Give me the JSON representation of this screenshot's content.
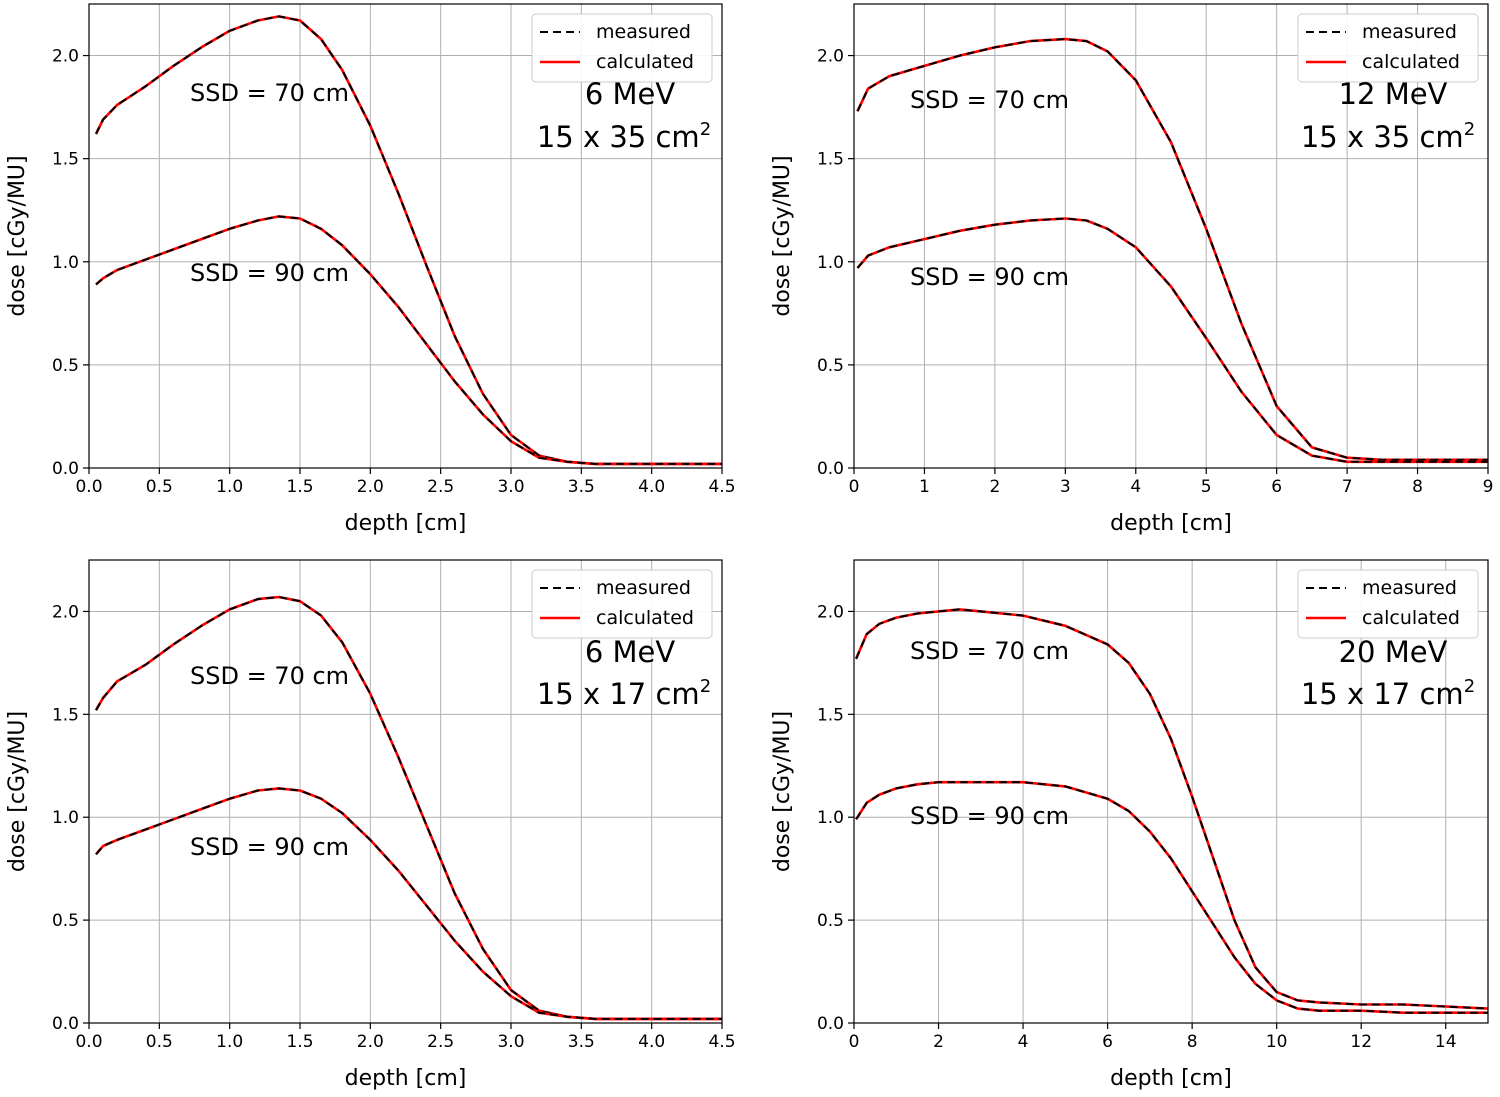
{
  "chart_data": [
    {
      "type": "line",
      "xlabel": "depth [cm]",
      "ylabel": "dose [cGy/MU]",
      "xlim": [
        0,
        4.5
      ],
      "ylim": [
        0,
        2.25
      ],
      "xticks": [
        "0.0",
        "0.5",
        "1.0",
        "1.5",
        "2.0",
        "2.5",
        "3.0",
        "3.5",
        "4.0",
        "4.5"
      ],
      "xtick_values": [
        0,
        0.5,
        1.0,
        1.5,
        2.0,
        2.5,
        3.0,
        3.5,
        4.0,
        4.5
      ],
      "yticks": [
        "0.0",
        "0.5",
        "1.0",
        "1.5",
        "2.0"
      ],
      "ytick_values": [
        0,
        0.5,
        1.0,
        1.5,
        2.0
      ],
      "grid": true,
      "legend_position": "top-right",
      "legend": [
        "measured",
        "calculated"
      ],
      "annotations": {
        "energy": "6 MeV",
        "field_prefix": "15 x 35 cm",
        "field_sup": "2",
        "ssd70": "SSD = 70 cm",
        "ssd90": "SSD = 90 cm"
      },
      "series": [
        {
          "group": "SSD = 70 cm",
          "x": [
            0.05,
            0.1,
            0.2,
            0.4,
            0.6,
            0.8,
            1.0,
            1.2,
            1.35,
            1.5,
            1.65,
            1.8,
            2.0,
            2.2,
            2.4,
            2.6,
            2.8,
            3.0,
            3.2,
            3.4,
            3.6,
            4.0,
            4.5
          ],
          "y": [
            1.62,
            1.69,
            1.76,
            1.85,
            1.95,
            2.04,
            2.12,
            2.17,
            2.19,
            2.17,
            2.08,
            1.93,
            1.66,
            1.33,
            0.98,
            0.64,
            0.36,
            0.16,
            0.06,
            0.03,
            0.02,
            0.02,
            0.02
          ]
        },
        {
          "group": "SSD = 90 cm",
          "x": [
            0.05,
            0.1,
            0.2,
            0.4,
            0.6,
            0.8,
            1.0,
            1.2,
            1.35,
            1.5,
            1.65,
            1.8,
            2.0,
            2.2,
            2.4,
            2.6,
            2.8,
            3.0,
            3.2,
            3.4,
            3.6,
            4.0,
            4.5
          ],
          "y": [
            0.89,
            0.92,
            0.96,
            1.01,
            1.06,
            1.11,
            1.16,
            1.2,
            1.22,
            1.21,
            1.16,
            1.08,
            0.94,
            0.78,
            0.6,
            0.42,
            0.26,
            0.13,
            0.05,
            0.03,
            0.02,
            0.02,
            0.02
          ]
        }
      ]
    },
    {
      "type": "line",
      "xlabel": "depth [cm]",
      "ylabel": "dose [cGy/MU]",
      "xlim": [
        0,
        9
      ],
      "ylim": [
        0,
        2.25
      ],
      "xticks": [
        "0",
        "1",
        "2",
        "3",
        "4",
        "5",
        "6",
        "7",
        "8",
        "9"
      ],
      "xtick_values": [
        0,
        1,
        2,
        3,
        4,
        5,
        6,
        7,
        8,
        9
      ],
      "yticks": [
        "0.0",
        "0.5",
        "1.0",
        "1.5",
        "2.0"
      ],
      "ytick_values": [
        0,
        0.5,
        1.0,
        1.5,
        2.0
      ],
      "grid": true,
      "legend_position": "top-right",
      "legend": [
        "measured",
        "calculated"
      ],
      "annotations": {
        "energy": "12 MeV",
        "field_prefix": "15 x 35 cm",
        "field_sup": "2",
        "ssd70": "SSD = 70 cm",
        "ssd90": "SSD = 90 cm"
      },
      "series": [
        {
          "group": "SSD = 70 cm",
          "x": [
            0.05,
            0.2,
            0.5,
            1.0,
            1.5,
            2.0,
            2.5,
            3.0,
            3.3,
            3.6,
            4.0,
            4.5,
            5.0,
            5.5,
            6.0,
            6.5,
            7.0,
            7.5,
            8.0,
            9.0
          ],
          "y": [
            1.73,
            1.84,
            1.9,
            1.95,
            2.0,
            2.04,
            2.07,
            2.08,
            2.07,
            2.02,
            1.88,
            1.58,
            1.16,
            0.7,
            0.3,
            0.1,
            0.05,
            0.04,
            0.04,
            0.04
          ]
        },
        {
          "group": "SSD = 90 cm",
          "x": [
            0.05,
            0.2,
            0.5,
            1.0,
            1.5,
            2.0,
            2.5,
            3.0,
            3.3,
            3.6,
            4.0,
            4.5,
            5.0,
            5.5,
            6.0,
            6.5,
            7.0,
            7.5,
            8.0,
            9.0
          ],
          "y": [
            0.97,
            1.03,
            1.07,
            1.11,
            1.15,
            1.18,
            1.2,
            1.21,
            1.2,
            1.16,
            1.07,
            0.88,
            0.63,
            0.37,
            0.16,
            0.06,
            0.03,
            0.03,
            0.03,
            0.03
          ]
        }
      ]
    },
    {
      "type": "line",
      "xlabel": "depth [cm]",
      "ylabel": "dose [cGy/MU]",
      "xlim": [
        0,
        4.5
      ],
      "ylim": [
        0,
        2.25
      ],
      "xticks": [
        "0.0",
        "0.5",
        "1.0",
        "1.5",
        "2.0",
        "2.5",
        "3.0",
        "3.5",
        "4.0",
        "4.5"
      ],
      "xtick_values": [
        0,
        0.5,
        1.0,
        1.5,
        2.0,
        2.5,
        3.0,
        3.5,
        4.0,
        4.5
      ],
      "yticks": [
        "0.0",
        "0.5",
        "1.0",
        "1.5",
        "2.0"
      ],
      "ytick_values": [
        0,
        0.5,
        1.0,
        1.5,
        2.0
      ],
      "grid": true,
      "legend_position": "top-right",
      "legend": [
        "measured",
        "calculated"
      ],
      "annotations": {
        "energy": "6 MeV",
        "field_prefix": "15 x 17 cm",
        "field_sup": "2",
        "ssd70": "SSD = 70 cm",
        "ssd90": "SSD = 90 cm"
      },
      "series": [
        {
          "group": "SSD = 70 cm",
          "x": [
            0.05,
            0.1,
            0.2,
            0.4,
            0.6,
            0.8,
            1.0,
            1.2,
            1.35,
            1.5,
            1.65,
            1.8,
            2.0,
            2.2,
            2.4,
            2.6,
            2.8,
            3.0,
            3.2,
            3.4,
            3.6,
            4.0,
            4.5
          ],
          "y": [
            1.52,
            1.58,
            1.66,
            1.74,
            1.84,
            1.93,
            2.01,
            2.06,
            2.07,
            2.05,
            1.98,
            1.85,
            1.6,
            1.29,
            0.96,
            0.63,
            0.36,
            0.16,
            0.06,
            0.03,
            0.02,
            0.02,
            0.02
          ]
        },
        {
          "group": "SSD = 90 cm",
          "x": [
            0.05,
            0.1,
            0.2,
            0.4,
            0.6,
            0.8,
            1.0,
            1.2,
            1.35,
            1.5,
            1.65,
            1.8,
            2.0,
            2.2,
            2.4,
            2.6,
            2.8,
            3.0,
            3.2,
            3.4,
            3.6,
            4.0,
            4.5
          ],
          "y": [
            0.82,
            0.86,
            0.89,
            0.94,
            0.99,
            1.04,
            1.09,
            1.13,
            1.14,
            1.13,
            1.09,
            1.02,
            0.89,
            0.74,
            0.57,
            0.4,
            0.25,
            0.13,
            0.05,
            0.03,
            0.02,
            0.02,
            0.02
          ]
        }
      ]
    },
    {
      "type": "line",
      "xlabel": "depth [cm]",
      "ylabel": "dose [cGy/MU]",
      "xlim": [
        0,
        15
      ],
      "ylim": [
        0,
        2.25
      ],
      "xticks": [
        "0",
        "2",
        "4",
        "6",
        "8",
        "10",
        "12",
        "14"
      ],
      "xtick_values": [
        0,
        2,
        4,
        6,
        8,
        10,
        12,
        14
      ],
      "yticks": [
        "0.0",
        "0.5",
        "1.0",
        "1.5",
        "2.0"
      ],
      "ytick_values": [
        0,
        0.5,
        1.0,
        1.5,
        2.0
      ],
      "grid": true,
      "legend_position": "top-right",
      "legend": [
        "measured",
        "calculated"
      ],
      "annotations": {
        "energy": "20 MeV",
        "field_prefix": "15 x 17 cm",
        "field_sup": "2",
        "ssd70": "SSD = 70 cm",
        "ssd90": "SSD = 90 cm"
      },
      "series": [
        {
          "group": "SSD = 70 cm",
          "x": [
            0.05,
            0.3,
            0.6,
            1.0,
            1.5,
            2.0,
            2.5,
            3.0,
            4.0,
            5.0,
            6.0,
            6.5,
            7.0,
            7.5,
            8.0,
            8.5,
            9.0,
            9.5,
            10.0,
            10.5,
            11.0,
            12.0,
            13.0,
            14.0,
            15.0
          ],
          "y": [
            1.77,
            1.89,
            1.94,
            1.97,
            1.99,
            2.0,
            2.01,
            2.0,
            1.98,
            1.93,
            1.84,
            1.75,
            1.6,
            1.38,
            1.1,
            0.8,
            0.5,
            0.27,
            0.15,
            0.11,
            0.1,
            0.09,
            0.09,
            0.08,
            0.07
          ]
        },
        {
          "group": "SSD = 90 cm",
          "x": [
            0.05,
            0.3,
            0.6,
            1.0,
            1.5,
            2.0,
            2.5,
            3.0,
            4.0,
            5.0,
            6.0,
            6.5,
            7.0,
            7.5,
            8.0,
            8.5,
            9.0,
            9.5,
            10.0,
            10.5,
            11.0,
            12.0,
            13.0,
            14.0,
            15.0
          ],
          "y": [
            0.99,
            1.07,
            1.11,
            1.14,
            1.16,
            1.17,
            1.17,
            1.17,
            1.17,
            1.15,
            1.09,
            1.03,
            0.93,
            0.8,
            0.64,
            0.48,
            0.32,
            0.19,
            0.11,
            0.07,
            0.06,
            0.06,
            0.05,
            0.05,
            0.05
          ]
        }
      ]
    }
  ],
  "colors": {
    "measured": "#000000",
    "calculated": "#ff0000",
    "grid": "#b0b0b0",
    "legend_border": "#cccccc"
  }
}
